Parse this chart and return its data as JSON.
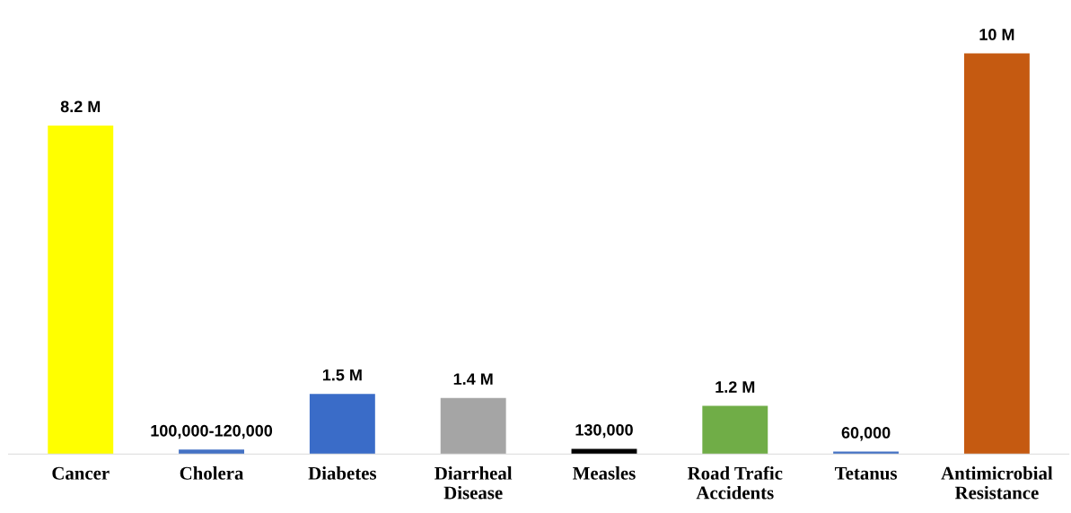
{
  "chart_data": {
    "type": "bar",
    "categories": [
      "Cancer",
      "Cholera",
      "Diabetes",
      "Diarrheal\nDisease",
      "Measles",
      "Road Trafic\nAccidents",
      "Tetanus",
      "Antimicrobial\nResistance"
    ],
    "values": [
      8200000,
      110000,
      1500000,
      1400000,
      130000,
      1200000,
      60000,
      10000000
    ],
    "colors": [
      "#ffff00",
      "#4472c4",
      "#3a6cc8",
      "#a5a5a5",
      "#000000",
      "#70ad47",
      "#4472c4",
      "#c55a11"
    ],
    "value_labels": [
      "8.2 M",
      "100,000-120,000",
      "1.5 M",
      "1.4 M",
      "130,000",
      "1.2 M",
      "60,000",
      "10 M"
    ],
    "grid": false,
    "legend": false
  }
}
